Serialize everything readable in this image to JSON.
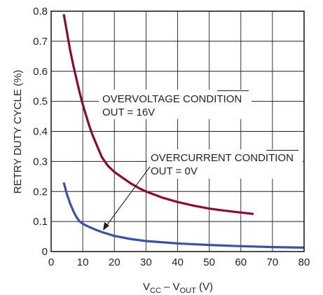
{
  "chart_data": {
    "type": "line",
    "xlabel": {
      "main1": "V",
      "sub1": "CC",
      "mid": " – V",
      "sub2": "OUT",
      "tail": " (V)"
    },
    "ylabel": "RETRY DUTY CYCLE (%)",
    "xlim": [
      0,
      80
    ],
    "ylim": [
      0,
      0.8
    ],
    "x_ticks": [
      "0",
      "10",
      "20",
      "30",
      "40",
      "50",
      "60",
      "70",
      "80"
    ],
    "y_ticks": [
      "0",
      "0.1",
      "0.2",
      "0.3",
      "0.4",
      "0.5",
      "0.6",
      "0.7",
      "0.8"
    ],
    "grid": true,
    "series": [
      {
        "label1": "OVERVOLTAGE CONDITION",
        "label2": "OUT = 16V",
        "color": "#8b0a32",
        "x": [
          4,
          5,
          6,
          7,
          8,
          9,
          10,
          11,
          12,
          13,
          14,
          15,
          16,
          18,
          20,
          22,
          25,
          28,
          30,
          35,
          40,
          45,
          50,
          55,
          60,
          64
        ],
        "y": [
          0.79,
          0.73,
          0.67,
          0.62,
          0.575,
          0.53,
          0.49,
          0.455,
          0.42,
          0.39,
          0.365,
          0.34,
          0.315,
          0.285,
          0.265,
          0.25,
          0.228,
          0.21,
          0.2,
          0.18,
          0.165,
          0.153,
          0.143,
          0.136,
          0.13,
          0.125
        ]
      },
      {
        "label1": "OVERCURRENT CONDITION",
        "label2": "OUT = 0V",
        "color": "#3b52a0",
        "x": [
          4,
          5,
          6,
          7,
          8,
          9,
          10,
          11,
          12,
          14,
          16,
          20,
          25,
          30,
          40,
          50,
          60,
          70,
          80
        ],
        "y": [
          0.23,
          0.19,
          0.16,
          0.135,
          0.115,
          0.1,
          0.093,
          0.087,
          0.082,
          0.073,
          0.065,
          0.052,
          0.042,
          0.035,
          0.027,
          0.022,
          0.018,
          0.015,
          0.013
        ]
      }
    ]
  }
}
